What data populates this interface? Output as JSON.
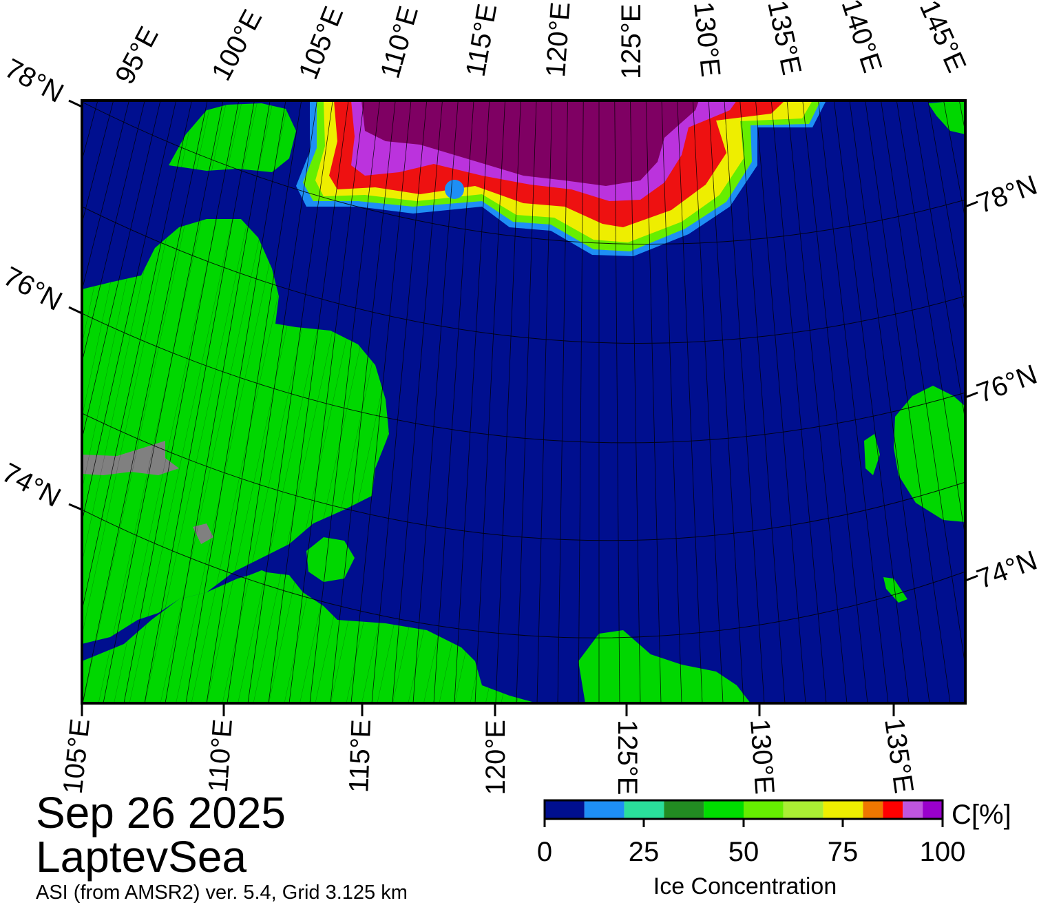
{
  "title": {
    "date": "Sep 26 2025",
    "region": "LaptevSea",
    "subtitle": "ASI (from AMSR2) ver. 5.4,  Grid 3.125 km"
  },
  "lon_labels_top": [
    "95°E",
    "100°E",
    "105°E",
    "110°E",
    "115°E",
    "120°E",
    "125°E",
    "130°E",
    "135°E",
    "140°E",
    "145°E"
  ],
  "lon_labels_bottom": [
    "105°E",
    "110°E",
    "115°E",
    "120°E",
    "125°E",
    "130°E",
    "135°E"
  ],
  "lat_labels_left": [
    "78°N",
    "76°N",
    "74°N"
  ],
  "lat_labels_right": [
    "78°N",
    "76°N",
    "74°N"
  ],
  "colorbar": {
    "unit": "C[%]",
    "label": "Ice Concentration",
    "ticks": [
      "0",
      "25",
      "50",
      "75",
      "100"
    ],
    "colors": [
      "#000f8f",
      "#1e8ff5",
      "#2adf9b",
      "#228b22",
      "#00dd00",
      "#66ee00",
      "#aaee33",
      "#eeee00",
      "#ee7700",
      "#ff0000",
      "#bf55df",
      "#9900cc"
    ]
  },
  "colors": {
    "ocean": "#000f8f",
    "land": "#00d700",
    "land_ice": "#808080",
    "ice_high": "#7f0063",
    "ice_purple": "#bb33dd",
    "ice_red": "#ee1111",
    "ice_yellow": "#eeee00",
    "ice_green": "#66ee00",
    "ice_blue": "#1e8ff5"
  }
}
